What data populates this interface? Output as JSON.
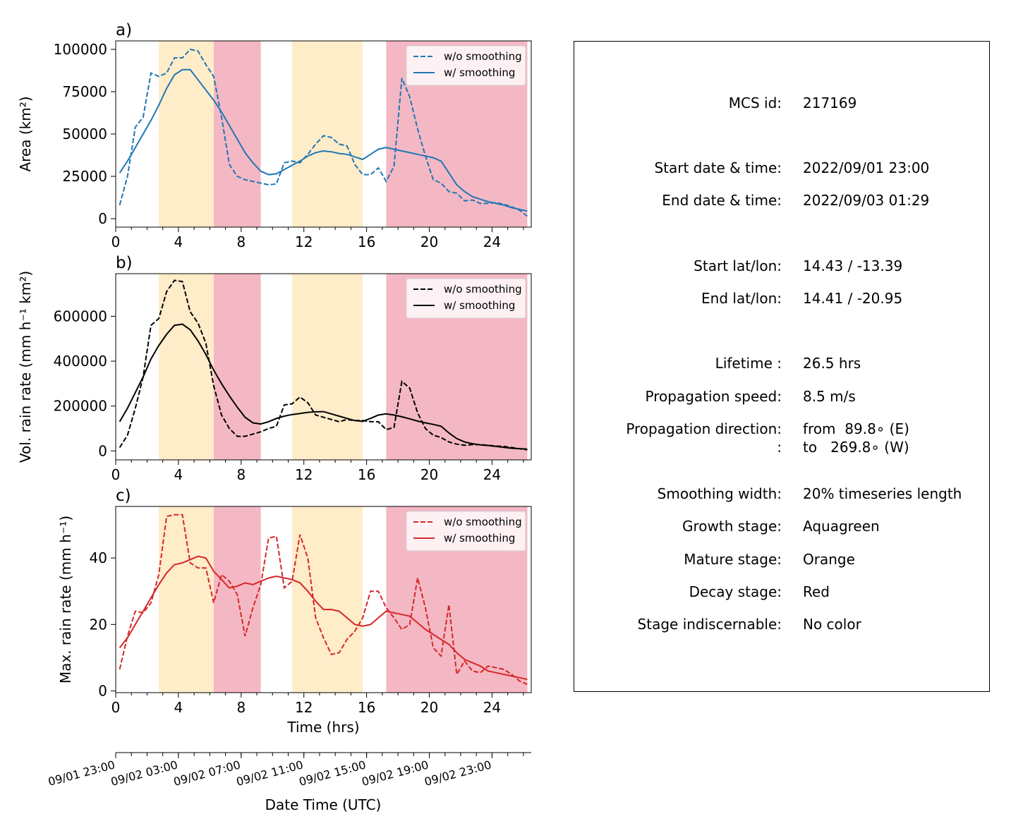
{
  "stage_colors": {
    "mature": "#ffecc9",
    "decay": "#f4b8c4"
  },
  "stage_bands": [
    {
      "stage": "mature",
      "start": 2.75,
      "end": 6.25
    },
    {
      "stage": "decay",
      "start": 6.25,
      "end": 9.25
    },
    {
      "stage": "mature",
      "start": 11.25,
      "end": 15.75
    },
    {
      "stage": "decay",
      "start": 17.25,
      "end": 26.25
    }
  ],
  "chart_data": [
    {
      "type": "line",
      "panel_label": "a)",
      "xlabel": "",
      "ylabel": "Area  (km²)",
      "xlim": [
        0,
        26.5
      ],
      "ylim": [
        -5000,
        105000
      ],
      "xticks": [
        0,
        4,
        8,
        12,
        16,
        20,
        24
      ],
      "yticks": [
        0,
        25000,
        50000,
        75000,
        100000
      ],
      "color": "#1f77b4",
      "legend_position": "upper right",
      "series": [
        {
          "name": "w/o smoothing",
          "style": "dashed",
          "x": [
            0.25,
            0.75,
            1.25,
            1.75,
            2.25,
            2.75,
            3.25,
            3.75,
            4.25,
            4.75,
            5.25,
            5.75,
            6.25,
            6.75,
            7.25,
            7.75,
            8.25,
            8.75,
            9.25,
            9.75,
            10.25,
            10.75,
            11.25,
            11.75,
            12.25,
            12.75,
            13.25,
            13.75,
            14.25,
            14.75,
            15.25,
            15.75,
            16.25,
            16.75,
            17.25,
            17.75,
            18.25,
            18.75,
            19.25,
            19.75,
            20.25,
            20.75,
            21.25,
            21.75,
            22.25,
            22.75,
            23.25,
            23.75,
            24.25,
            24.75,
            25.25,
            25.75,
            26.25
          ],
          "y": [
            8000,
            25000,
            54000,
            60000,
            86000,
            84000,
            86000,
            95000,
            95000,
            100000,
            99000,
            91000,
            84000,
            60000,
            32000,
            25000,
            23000,
            22000,
            21000,
            20000,
            20500,
            33000,
            34000,
            33000,
            38000,
            44000,
            49000,
            48000,
            44000,
            43000,
            32000,
            26000,
            26000,
            30000,
            22000,
            31000,
            83000,
            72000,
            53000,
            37000,
            23000,
            21000,
            16000,
            15000,
            10500,
            11000,
            9000,
            9000,
            9500,
            8500,
            7000,
            5000,
            1500
          ]
        },
        {
          "name": "w/ smoothing",
          "style": "solid",
          "x": [
            0.25,
            0.75,
            1.25,
            1.75,
            2.25,
            2.75,
            3.25,
            3.75,
            4.25,
            4.75,
            5.25,
            5.75,
            6.25,
            6.75,
            7.25,
            7.75,
            8.25,
            8.75,
            9.25,
            9.75,
            10.25,
            10.75,
            11.25,
            11.75,
            12.25,
            12.75,
            13.25,
            13.75,
            14.25,
            14.75,
            15.25,
            15.75,
            16.25,
            16.75,
            17.25,
            17.75,
            18.25,
            18.75,
            19.25,
            19.75,
            20.25,
            20.75,
            21.25,
            21.75,
            22.25,
            22.75,
            23.25,
            23.75,
            24.25,
            24.75,
            25.25,
            25.75,
            26.25
          ],
          "y": [
            27000,
            34000,
            42000,
            50000,
            58000,
            67000,
            77000,
            85000,
            88000,
            88000,
            82000,
            76000,
            70000,
            63000,
            55000,
            47000,
            39000,
            33000,
            28000,
            26000,
            26500,
            29000,
            31500,
            34000,
            37000,
            39000,
            40000,
            39500,
            38500,
            38000,
            36500,
            35000,
            38000,
            41000,
            42000,
            41000,
            40000,
            39000,
            38000,
            37000,
            36000,
            34000,
            27000,
            20000,
            16000,
            13000,
            11500,
            10000,
            9000,
            8000,
            6500,
            5500,
            4500
          ]
        }
      ]
    },
    {
      "type": "line",
      "panel_label": "b)",
      "xlabel": "",
      "ylabel": "Vol. rain rate (mm h⁻¹ km²)",
      "xlim": [
        0,
        26.5
      ],
      "ylim": [
        -40000,
        790000
      ],
      "xticks": [
        0,
        4,
        8,
        12,
        16,
        20,
        24
      ],
      "yticks": [
        0,
        200000,
        400000,
        600000
      ],
      "color": "#000000",
      "legend_position": "upper right",
      "series": [
        {
          "name": "w/o smoothing",
          "style": "dashed",
          "x": [
            0.25,
            0.75,
            1.25,
            1.75,
            2.25,
            2.75,
            3.25,
            3.75,
            4.25,
            4.75,
            5.25,
            5.75,
            6.25,
            6.75,
            7.25,
            7.75,
            8.25,
            8.75,
            9.25,
            9.75,
            10.25,
            10.75,
            11.25,
            11.75,
            12.25,
            12.75,
            13.25,
            13.75,
            14.25,
            14.75,
            15.25,
            15.75,
            16.25,
            16.75,
            17.25,
            17.75,
            18.25,
            18.75,
            19.25,
            19.75,
            20.25,
            20.75,
            21.25,
            21.75,
            22.25,
            22.75,
            23.25,
            23.75,
            24.25,
            24.75,
            25.25,
            25.75,
            26.25
          ],
          "y": [
            15000,
            70000,
            190000,
            330000,
            560000,
            590000,
            710000,
            760000,
            755000,
            620000,
            570000,
            480000,
            290000,
            160000,
            100000,
            65000,
            65000,
            75000,
            85000,
            100000,
            110000,
            205000,
            210000,
            240000,
            215000,
            160000,
            150000,
            140000,
            130000,
            140000,
            135000,
            135000,
            130000,
            130000,
            95000,
            105000,
            310000,
            280000,
            170000,
            100000,
            70000,
            60000,
            40000,
            30000,
            25000,
            28000,
            28000,
            25000,
            22000,
            20000,
            15000,
            10000,
            5000
          ]
        },
        {
          "name": "w/ smoothing",
          "style": "solid",
          "x": [
            0.25,
            0.75,
            1.25,
            1.75,
            2.25,
            2.75,
            3.25,
            3.75,
            4.25,
            4.75,
            5.25,
            5.75,
            6.25,
            6.75,
            7.25,
            7.75,
            8.25,
            8.75,
            9.25,
            9.75,
            10.25,
            10.75,
            11.25,
            11.75,
            12.25,
            12.75,
            13.25,
            13.75,
            14.25,
            14.75,
            15.25,
            15.75,
            16.25,
            16.75,
            17.25,
            17.75,
            18.25,
            18.75,
            19.25,
            19.75,
            20.25,
            20.75,
            21.25,
            21.75,
            22.25,
            22.75,
            23.25,
            23.75,
            24.25,
            24.75,
            25.25,
            25.75,
            26.25
          ],
          "y": [
            130000,
            190000,
            260000,
            330000,
            410000,
            470000,
            520000,
            560000,
            565000,
            540000,
            490000,
            430000,
            360000,
            300000,
            245000,
            195000,
            150000,
            125000,
            120000,
            130000,
            145000,
            155000,
            162000,
            167000,
            172000,
            174000,
            175000,
            165000,
            155000,
            145000,
            135000,
            132000,
            145000,
            160000,
            165000,
            160000,
            152000,
            143000,
            133000,
            125000,
            118000,
            110000,
            80000,
            55000,
            40000,
            32000,
            27000,
            24000,
            20000,
            16000,
            12000,
            10000,
            8000
          ]
        }
      ]
    },
    {
      "type": "line",
      "panel_label": "c)",
      "xlabel": "Time (hrs)",
      "ylabel": "Max. rain rate  (mm h⁻¹)",
      "xlim": [
        0,
        26.5
      ],
      "ylim": [
        -0.5,
        55.5
      ],
      "xticks": [
        0,
        4,
        8,
        12,
        16,
        20,
        24
      ],
      "yticks": [
        0,
        20,
        40
      ],
      "color": "#d62728",
      "legend_position": "upper right",
      "series": [
        {
          "name": "w/o smoothing",
          "style": "dashed",
          "x": [
            0.25,
            0.75,
            1.25,
            1.75,
            2.25,
            2.75,
            3.25,
            3.75,
            4.25,
            4.75,
            5.25,
            5.75,
            6.25,
            6.75,
            7.25,
            7.75,
            8.25,
            8.75,
            9.25,
            9.75,
            10.25,
            10.75,
            11.25,
            11.75,
            12.25,
            12.75,
            13.25,
            13.75,
            14.25,
            14.75,
            15.25,
            15.75,
            16.25,
            16.75,
            17.25,
            17.75,
            18.25,
            18.75,
            19.25,
            19.75,
            20.25,
            20.75,
            21.25,
            21.75,
            22.25,
            22.75,
            23.25,
            23.75,
            24.25,
            24.75,
            25.25,
            25.75,
            26.25
          ],
          "y": [
            6.5,
            16.5,
            24,
            23.5,
            26.5,
            35,
            52.5,
            53,
            53,
            38.5,
            37,
            37,
            26.5,
            35,
            33,
            29,
            16.5,
            25,
            32,
            46,
            46.5,
            31,
            33,
            47,
            40,
            22,
            16,
            11,
            11.5,
            15.5,
            18,
            22,
            30,
            30,
            25,
            22,
            18.5,
            20,
            34,
            25,
            13,
            10.5,
            26,
            5,
            9,
            6,
            5.5,
            7.5,
            7,
            6.5,
            5,
            3,
            2
          ]
        },
        {
          "name": "w/ smoothing",
          "style": "solid",
          "x": [
            0.25,
            0.75,
            1.25,
            1.75,
            2.25,
            2.75,
            3.25,
            3.75,
            4.25,
            4.75,
            5.25,
            5.75,
            6.25,
            6.75,
            7.25,
            7.75,
            8.25,
            8.75,
            9.25,
            9.75,
            10.25,
            10.75,
            11.25,
            11.75,
            12.25,
            12.75,
            13.25,
            13.75,
            14.25,
            14.75,
            15.25,
            15.75,
            16.25,
            16.75,
            17.25,
            17.75,
            18.25,
            18.75,
            19.25,
            19.75,
            20.25,
            20.75,
            21.25,
            21.75,
            22.25,
            22.75,
            23.25,
            23.75,
            24.25,
            24.75,
            25.25,
            25.75,
            26.25
          ],
          "y": [
            13,
            16,
            20,
            24,
            28,
            32,
            35.5,
            38,
            38.5,
            39.5,
            40.5,
            40,
            36,
            33.5,
            31,
            31.5,
            32.5,
            32,
            33,
            34,
            34.5,
            34,
            33.5,
            32.5,
            30,
            27,
            24.5,
            24.5,
            24,
            22,
            20,
            19.5,
            20,
            22,
            24,
            23.5,
            23,
            22.5,
            20.5,
            18.5,
            17,
            15.5,
            14,
            11.5,
            9.5,
            8.5,
            7.5,
            6,
            5.5,
            5,
            4.5,
            4,
            3.5
          ]
        }
      ]
    }
  ],
  "date_axis": {
    "xlabel": "Date Time (UTC)",
    "ticks": [
      {
        "hour": 0,
        "label": "09/01 23:00"
      },
      {
        "hour": 4,
        "label": "09/02 03:00"
      },
      {
        "hour": 8,
        "label": "09/02 07:00"
      },
      {
        "hour": 12,
        "label": "09/02 11:00"
      },
      {
        "hour": 16,
        "label": "09/02 15:00"
      },
      {
        "hour": 20,
        "label": "09/02 19:00"
      },
      {
        "hour": 24,
        "label": "09/02 23:00"
      }
    ]
  },
  "info": {
    "mcs_id": {
      "label": "MCS id:",
      "value": "217169"
    },
    "start_time": {
      "label": "Start date & time:",
      "value": "2022/09/01 23:00"
    },
    "end_time": {
      "label": "End date & time:",
      "value": "2022/09/03 01:29"
    },
    "start_latlon": {
      "label": "Start lat/lon:",
      "value": "14.43 / -13.39"
    },
    "end_latlon": {
      "label": "End lat/lon:",
      "value": "14.41 / -20.95"
    },
    "lifetime": {
      "label": "Lifetime :",
      "value": "26.5 hrs"
    },
    "prop_speed": {
      "label": "Propagation speed:",
      "value": "8.5 m/s"
    },
    "prop_dir": {
      "label": "Propagation direction:",
      "value": "from  89.8∘ (E)"
    },
    "prop_dir2": {
      "label": ":",
      "value": "to   269.8∘ (W)"
    },
    "smoothing": {
      "label": "Smoothing width:",
      "value": "20% timeseries length"
    },
    "growth": {
      "label": "Growth stage:",
      "value": "Aquagreen"
    },
    "mature": {
      "label": "Mature stage:",
      "value": "Orange"
    },
    "decay": {
      "label": "Decay stage:",
      "value": "Red"
    },
    "indiscernable": {
      "label": "Stage indiscernable:",
      "value": "No color"
    }
  }
}
